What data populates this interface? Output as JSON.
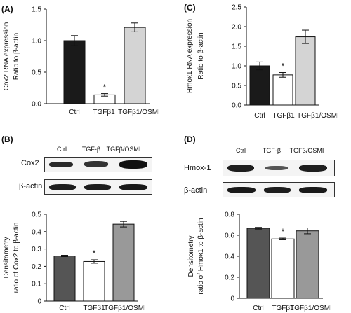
{
  "panels": {
    "A": "(A)",
    "B": "(B)",
    "C": "(C)",
    "D": "(D)"
  },
  "blots": {
    "B": {
      "lanes": [
        "Ctrl",
        "TGF-β",
        "TGFβ/OSMI"
      ],
      "rows": [
        "Cox2",
        "β-actin"
      ],
      "band_intensity": [
        [
          0.85,
          0.8,
          1.0
        ],
        [
          0.9,
          0.9,
          0.92
        ]
      ]
    },
    "D": {
      "lanes": [
        "Ctrl",
        "TGF-β",
        "TGFβ/OSMI"
      ],
      "rows": [
        "Hmox-1",
        "β-actin"
      ],
      "band_intensity": [
        [
          0.85,
          0.55,
          0.88
        ],
        [
          0.92,
          0.9,
          0.92
        ]
      ]
    }
  },
  "chart_data": [
    {
      "id": "A",
      "type": "bar",
      "categories": [
        "Ctrl",
        "TGFβ1",
        "TGFβ1/OSMI"
      ],
      "values": [
        1.0,
        0.14,
        1.21
      ],
      "errors": [
        0.08,
        0.02,
        0.07
      ],
      "significance": [
        "",
        "*",
        ""
      ],
      "ylabel_lines": [
        "Cox2 RNA expression",
        "Ratio to β-actin"
      ],
      "ylim": [
        0,
        1.5
      ],
      "yticks": [
        0.0,
        0.5,
        1.0,
        1.5
      ],
      "tick_labels": [
        "0.0",
        "0.5",
        "1.0",
        "1.5"
      ],
      "colors": [
        "#1a1a1a",
        "#ffffff",
        "#d4d4d4"
      ]
    },
    {
      "id": "C",
      "type": "bar",
      "categories": [
        "Ctrl",
        "TGFβ1",
        "TGFβ1/OSMI"
      ],
      "values": [
        1.0,
        0.77,
        1.74
      ],
      "errors": [
        0.1,
        0.06,
        0.17
      ],
      "significance": [
        "",
        "*",
        ""
      ],
      "ylabel_lines": [
        "Hmox1 RNA expression",
        "Ratio to β-actin"
      ],
      "ylim": [
        0,
        2.5
      ],
      "yticks": [
        0.0,
        0.5,
        1.0,
        1.5,
        2.0,
        2.5
      ],
      "tick_labels": [
        "0.0",
        "0.5",
        "1.0",
        "1.5",
        "2.0",
        "2.5"
      ],
      "colors": [
        "#1a1a1a",
        "#ffffff",
        "#d4d4d4"
      ]
    },
    {
      "id": "B",
      "type": "bar",
      "categories": [
        "Ctrl",
        "TGFβ1",
        "TGFβ1/OSMI"
      ],
      "values": [
        0.26,
        0.228,
        0.443
      ],
      "errors": [
        0.004,
        0.01,
        0.016
      ],
      "significance": [
        "",
        "*",
        ""
      ],
      "ylabel_lines": [
        "Densitometry",
        "ratio of Cox2 to β-actin"
      ],
      "ylim": [
        0,
        0.5
      ],
      "yticks": [
        0.0,
        0.1,
        0.2,
        0.3,
        0.4,
        0.5
      ],
      "tick_labels": [
        "0",
        "0.1",
        "0.2",
        "0.3",
        "0.4",
        "0.5"
      ],
      "colors": [
        "#555555",
        "#ffffff",
        "#999999"
      ]
    },
    {
      "id": "D",
      "type": "bar",
      "categories": [
        "Ctrl",
        "TGFβ1",
        "TGFβ1/OSMI"
      ],
      "values": [
        0.667,
        0.565,
        0.642
      ],
      "errors": [
        0.008,
        0.008,
        0.028
      ],
      "significance": [
        "",
        "*",
        ""
      ],
      "ylabel_lines": [
        "Densitometry",
        "ratio of Hmox1 to β-actin"
      ],
      "ylim": [
        0,
        0.8
      ],
      "yticks": [
        0.0,
        0.2,
        0.4,
        0.6,
        0.8
      ],
      "tick_labels": [
        "0",
        "0.2",
        "0.4",
        "0.6",
        "0.8"
      ],
      "colors": [
        "#555555",
        "#ffffff",
        "#999999"
      ]
    }
  ]
}
